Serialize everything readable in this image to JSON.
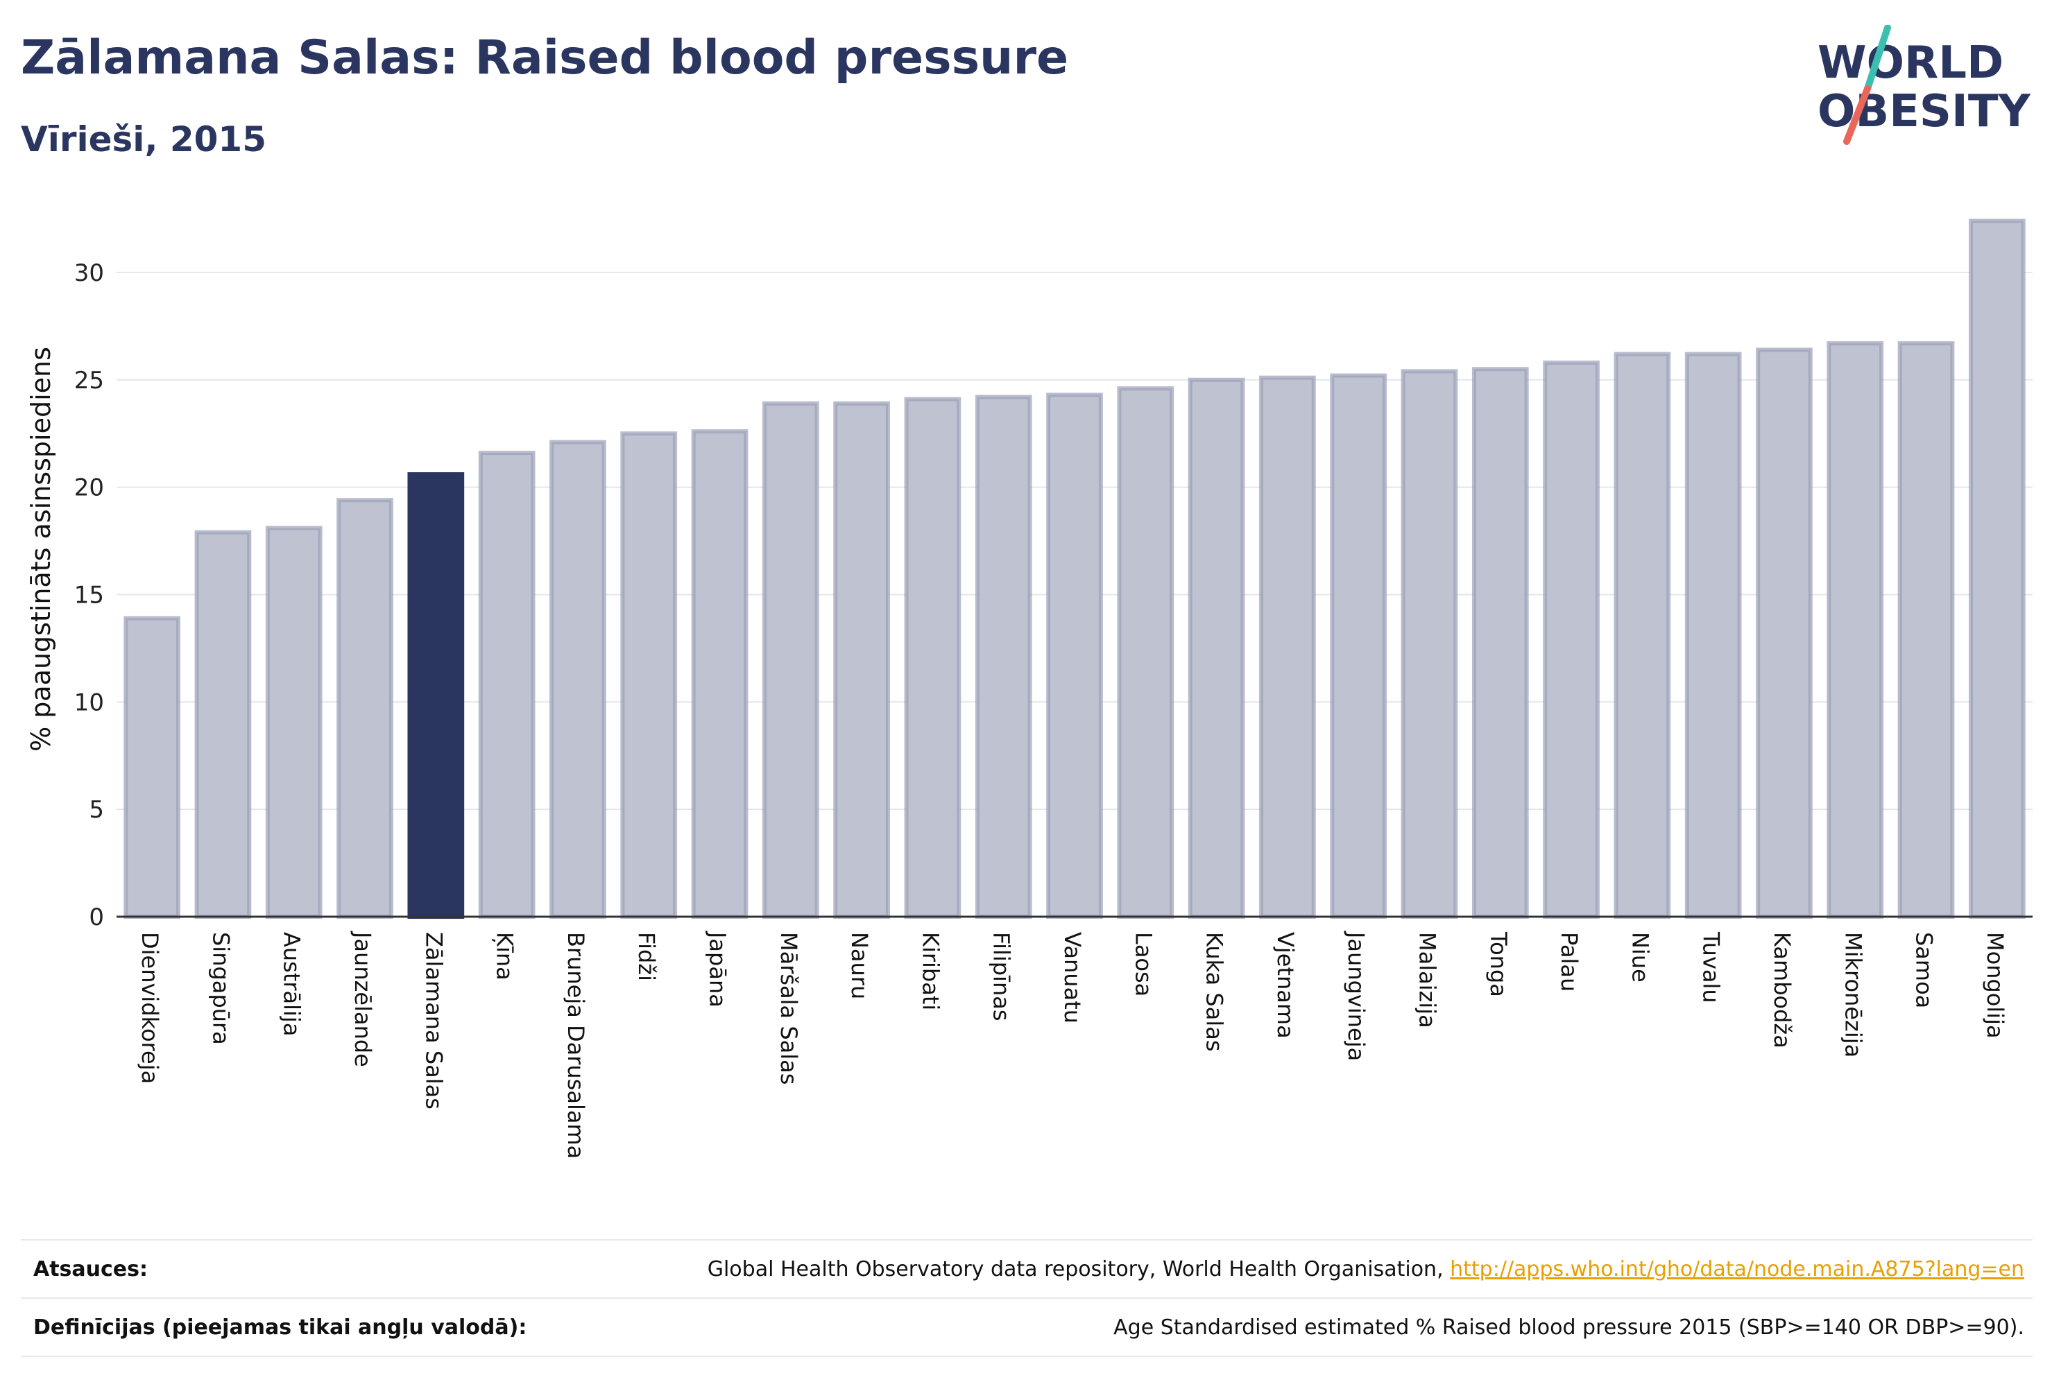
{
  "header": {
    "title": "Zālamana Salas: Raised blood pressure",
    "subtitle": "Vīrieši, 2015"
  },
  "logo": {
    "line1": "WORLD",
    "line2": "OBESITY",
    "icon": "world-obesity-logo"
  },
  "colors": {
    "bar": "#bfc2d0",
    "bar_border": "#9aa0b8",
    "highlight": "#2a3560",
    "logo_text": "#2a3560",
    "slash_teal": "#3bbfb0",
    "slash_coral": "#e8665a",
    "link": "#e8a000"
  },
  "chart_data": {
    "type": "bar",
    "ylabel": "% paaugstināts asinsspiediens",
    "xlabel": "",
    "ylim": [
      0,
      33
    ],
    "yticks": [
      0,
      5,
      10,
      15,
      20,
      25,
      30
    ],
    "grid": true,
    "highlight": "Zālamana Salas",
    "categories": [
      "Dienvidkoreja",
      "Singapūra",
      "Austrālija",
      "Jaunzēlande",
      "Zālamana Salas",
      "Ķīna",
      "Bruneja Darusalama",
      "Fidži",
      "Japāna",
      "Māršala Salas",
      "Nauru",
      "Kiribati",
      "Filipīnas",
      "Vanuatu",
      "Laosa",
      "Kuka Salas",
      "Vjetnama",
      "Jaungvineja",
      "Malaizija",
      "Tonga",
      "Palau",
      "Niue",
      "Tuvalu",
      "Kambodža",
      "Mikronēzija",
      "Samoa",
      "Mongolija"
    ],
    "values": [
      13.9,
      17.9,
      18.1,
      19.4,
      20.6,
      21.6,
      22.1,
      22.5,
      22.6,
      23.9,
      23.9,
      24.1,
      24.2,
      24.3,
      24.6,
      25.0,
      25.1,
      25.2,
      25.4,
      25.5,
      25.8,
      26.2,
      26.2,
      26.4,
      26.7,
      26.7,
      32.4
    ]
  },
  "footer": {
    "sources_label": "Atsauces:",
    "sources_text": "Global Health Observatory data repository, World Health Organisation, ",
    "sources_link": "http://apps.who.int/gho/data/node.main.A875?lang=en",
    "definitions_label": "Definīcijas (pieejamas tikai angļu valodā):",
    "definitions_text": "Age Standardised estimated % Raised blood pressure 2015 (SBP>=140 OR DBP>=90)."
  }
}
